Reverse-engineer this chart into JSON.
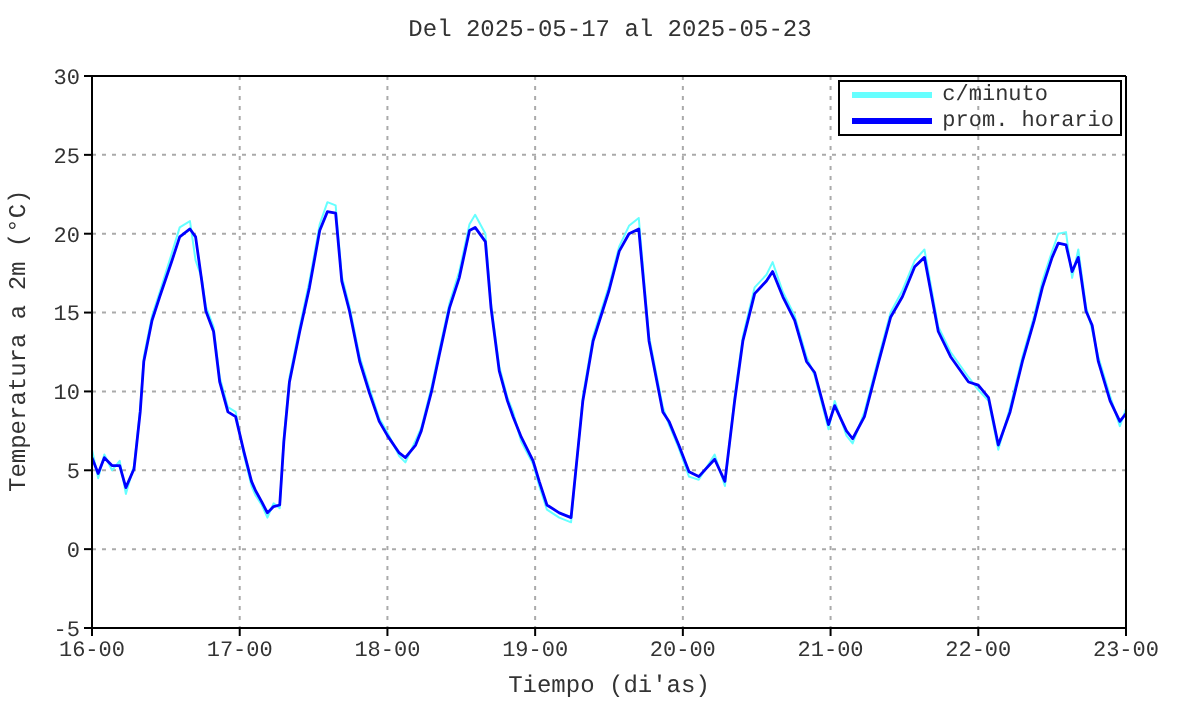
{
  "chart_data": {
    "type": "line",
    "title": "Del 2025-05-17 al 2025-05-23",
    "xlabel": "Tiempo (di'as)",
    "ylabel": "Temperatura a 2m (°C)",
    "x": [
      "2025-05-16T00:00",
      "2025-05-16T01:00",
      "2025-05-16T02:00",
      "2025-05-16T03:15",
      "2025-05-16T04:30",
      "2025-05-16T05:30",
      "2025-05-16T06:50",
      "2025-05-16T07:50",
      "2025-05-16T08:25",
      "2025-05-16T09:45",
      "2025-05-16T11:00",
      "2025-05-16T13:00",
      "2025-05-16T14:15",
      "2025-05-16T15:55",
      "2025-05-16T16:50",
      "2025-05-16T17:50",
      "2025-05-16T18:30",
      "2025-05-16T19:45",
      "2025-05-16T20:45",
      "2025-05-16T22:05",
      "2025-05-16T23:20",
      "2025-05-17T00:40",
      "2025-05-17T01:55",
      "2025-05-17T02:35",
      "2025-05-17T03:35",
      "2025-05-17T04:30",
      "2025-05-17T05:30",
      "2025-05-17T06:30",
      "2025-05-17T07:10",
      "2025-05-17T08:05",
      "2025-05-17T09:45",
      "2025-05-17T11:20",
      "2025-05-17T13:00",
      "2025-05-17T14:15",
      "2025-05-17T15:35",
      "2025-05-17T16:35",
      "2025-05-17T17:50",
      "2025-05-17T19:30",
      "2025-05-17T21:05",
      "2025-05-17T22:40",
      "2025-05-18T00:00",
      "2025-05-18T01:55",
      "2025-05-18T02:55",
      "2025-05-18T04:35",
      "2025-05-18T05:30",
      "2025-05-18T07:10",
      "2025-05-18T08:25",
      "2025-05-18T10:05",
      "2025-05-18T11:40",
      "2025-05-18T13:20",
      "2025-05-18T14:15",
      "2025-05-18T15:55",
      "2025-05-18T16:50",
      "2025-05-18T18:10",
      "2025-05-18T19:30",
      "2025-05-18T20:25",
      "2025-05-18T21:45",
      "2025-05-18T23:40",
      "2025-05-19T00:40",
      "2025-05-19T01:55",
      "2025-05-19T03:55",
      "2025-05-19T05:50",
      "2025-05-19T07:45",
      "2025-05-19T09:25",
      "2025-05-19T12:00",
      "2025-05-19T13:40",
      "2025-05-19T15:15",
      "2025-05-19T16:50",
      "2025-05-19T18:30",
      "2025-05-19T20:45",
      "2025-05-19T21:45",
      "2025-05-19T23:20",
      "2025-05-20T01:00",
      "2025-05-20T02:35",
      "2025-05-20T05:10",
      "2025-05-20T06:50",
      "2025-05-20T08:25",
      "2025-05-20T09:45",
      "2025-05-20T11:40",
      "2025-05-20T13:35",
      "2025-05-20T14:35",
      "2025-05-20T16:15",
      "2025-05-20T18:10",
      "2025-05-20T20:05",
      "2025-05-20T21:25",
      "2025-05-20T23:40",
      "2025-05-21T00:40",
      "2025-05-21T02:35",
      "2025-05-21T03:35",
      "2025-05-21T05:30",
      "2025-05-21T07:50",
      "2025-05-21T09:45",
      "2025-05-21T11:40",
      "2025-05-21T13:40",
      "2025-05-21T15:15",
      "2025-05-21T17:30",
      "2025-05-21T19:30",
      "2025-05-21T22:25",
      "2025-05-22T00:00",
      "2025-05-22T01:40",
      "2025-05-22T03:15",
      "2025-05-22T05:10",
      "2025-05-22T07:10",
      "2025-05-22T09:05",
      "2025-05-22T10:25",
      "2025-05-22T12:00",
      "2025-05-22T13:00",
      "2025-05-22T14:15",
      "2025-05-22T15:15",
      "2025-05-22T16:15",
      "2025-05-22T17:30",
      "2025-05-22T18:30",
      "2025-05-22T19:30",
      "2025-05-22T21:25",
      "2025-05-22T23:00",
      "2025-05-23T00:00"
    ],
    "series": [
      {
        "name": "c/minuto",
        "color": "#66ffff",
        "values": [
          6.3,
          4.5,
          6.0,
          5.0,
          5.6,
          3.5,
          5.3,
          8.9,
          12.2,
          14.8,
          16.3,
          18.8,
          20.4,
          20.8,
          18.3,
          17.2,
          15.4,
          14.1,
          10.9,
          9.0,
          8.7,
          6.0,
          4.0,
          3.4,
          2.8,
          2.0,
          2.9,
          2.6,
          7.1,
          10.9,
          14.1,
          17.0,
          20.6,
          22.0,
          21.8,
          17.3,
          15.4,
          12.2,
          10.2,
          8.3,
          7.4,
          5.9,
          5.5,
          6.9,
          7.7,
          10.3,
          12.6,
          15.6,
          17.6,
          20.6,
          21.2,
          20.0,
          15.6,
          11.6,
          9.6,
          8.7,
          6.8,
          5.4,
          4.0,
          2.5,
          2.0,
          1.7,
          9.7,
          13.5,
          16.7,
          19.2,
          20.5,
          21.0,
          13.5,
          9.0,
          7.9,
          6.4,
          4.6,
          4.4,
          6.0,
          4.0,
          9.7,
          13.5,
          16.6,
          17.4,
          18.2,
          16.3,
          14.8,
          12.2,
          11.0,
          7.6,
          9.4,
          7.2,
          6.7,
          8.7,
          12.2,
          15.0,
          16.4,
          18.3,
          19.0,
          14.1,
          12.5,
          10.9,
          10.1,
          9.4,
          6.3,
          9.0,
          12.2,
          14.8,
          17.0,
          18.9,
          20.0,
          20.1,
          17.2,
          19.0,
          15.4,
          13.9,
          12.2,
          9.7,
          7.8,
          8.9
        ]
      },
      {
        "name": "prom. horario",
        "color": "#0000ff",
        "values": [
          5.8,
          4.8,
          5.8,
          5.3,
          5.3,
          3.9,
          5.1,
          8.7,
          11.9,
          14.5,
          16.0,
          18.3,
          19.8,
          20.3,
          19.8,
          17.0,
          15.1,
          13.8,
          10.6,
          8.7,
          8.4,
          6.2,
          4.3,
          3.7,
          3.0,
          2.3,
          2.7,
          2.8,
          6.8,
          10.6,
          13.8,
          16.6,
          20.2,
          21.4,
          21.3,
          17.0,
          15.1,
          11.9,
          9.9,
          8.1,
          7.2,
          6.1,
          5.8,
          6.6,
          7.5,
          10.0,
          12.3,
          15.3,
          17.2,
          20.2,
          20.4,
          19.5,
          15.3,
          11.3,
          9.4,
          8.4,
          7.1,
          5.6,
          4.3,
          2.8,
          2.3,
          2.0,
          9.4,
          13.2,
          16.4,
          18.9,
          20.0,
          20.3,
          13.2,
          8.7,
          8.1,
          6.6,
          4.9,
          4.6,
          5.7,
          4.3,
          9.4,
          13.2,
          16.2,
          17.0,
          17.6,
          16.0,
          14.5,
          11.9,
          11.2,
          7.9,
          9.1,
          7.5,
          7.0,
          8.4,
          11.9,
          14.7,
          16.0,
          17.9,
          18.5,
          13.8,
          12.2,
          10.6,
          10.4,
          9.6,
          6.6,
          8.7,
          11.9,
          14.5,
          16.6,
          18.5,
          19.4,
          19.3,
          17.6,
          18.5,
          15.1,
          14.2,
          11.9,
          9.4,
          8.1,
          8.6
        ]
      }
    ],
    "xlim": [
      "2025-05-16T00:00",
      "2025-05-23T00:00"
    ],
    "xticks": [
      {
        "value": "2025-05-16T00:00",
        "label": "16-00"
      },
      {
        "value": "2025-05-17T00:00",
        "label": "17-00"
      },
      {
        "value": "2025-05-18T00:00",
        "label": "18-00"
      },
      {
        "value": "2025-05-19T00:00",
        "label": "19-00"
      },
      {
        "value": "2025-05-20T00:00",
        "label": "20-00"
      },
      {
        "value": "2025-05-21T00:00",
        "label": "21-00"
      },
      {
        "value": "2025-05-22T00:00",
        "label": "22-00"
      },
      {
        "value": "2025-05-23T00:00",
        "label": "23-00"
      }
    ],
    "ylim": [
      -5,
      30
    ],
    "yticks": [
      -5,
      0,
      5,
      10,
      15,
      20,
      25,
      30
    ],
    "grid": true,
    "legend": "top right",
    "marker": "none",
    "line_style": "solid"
  }
}
